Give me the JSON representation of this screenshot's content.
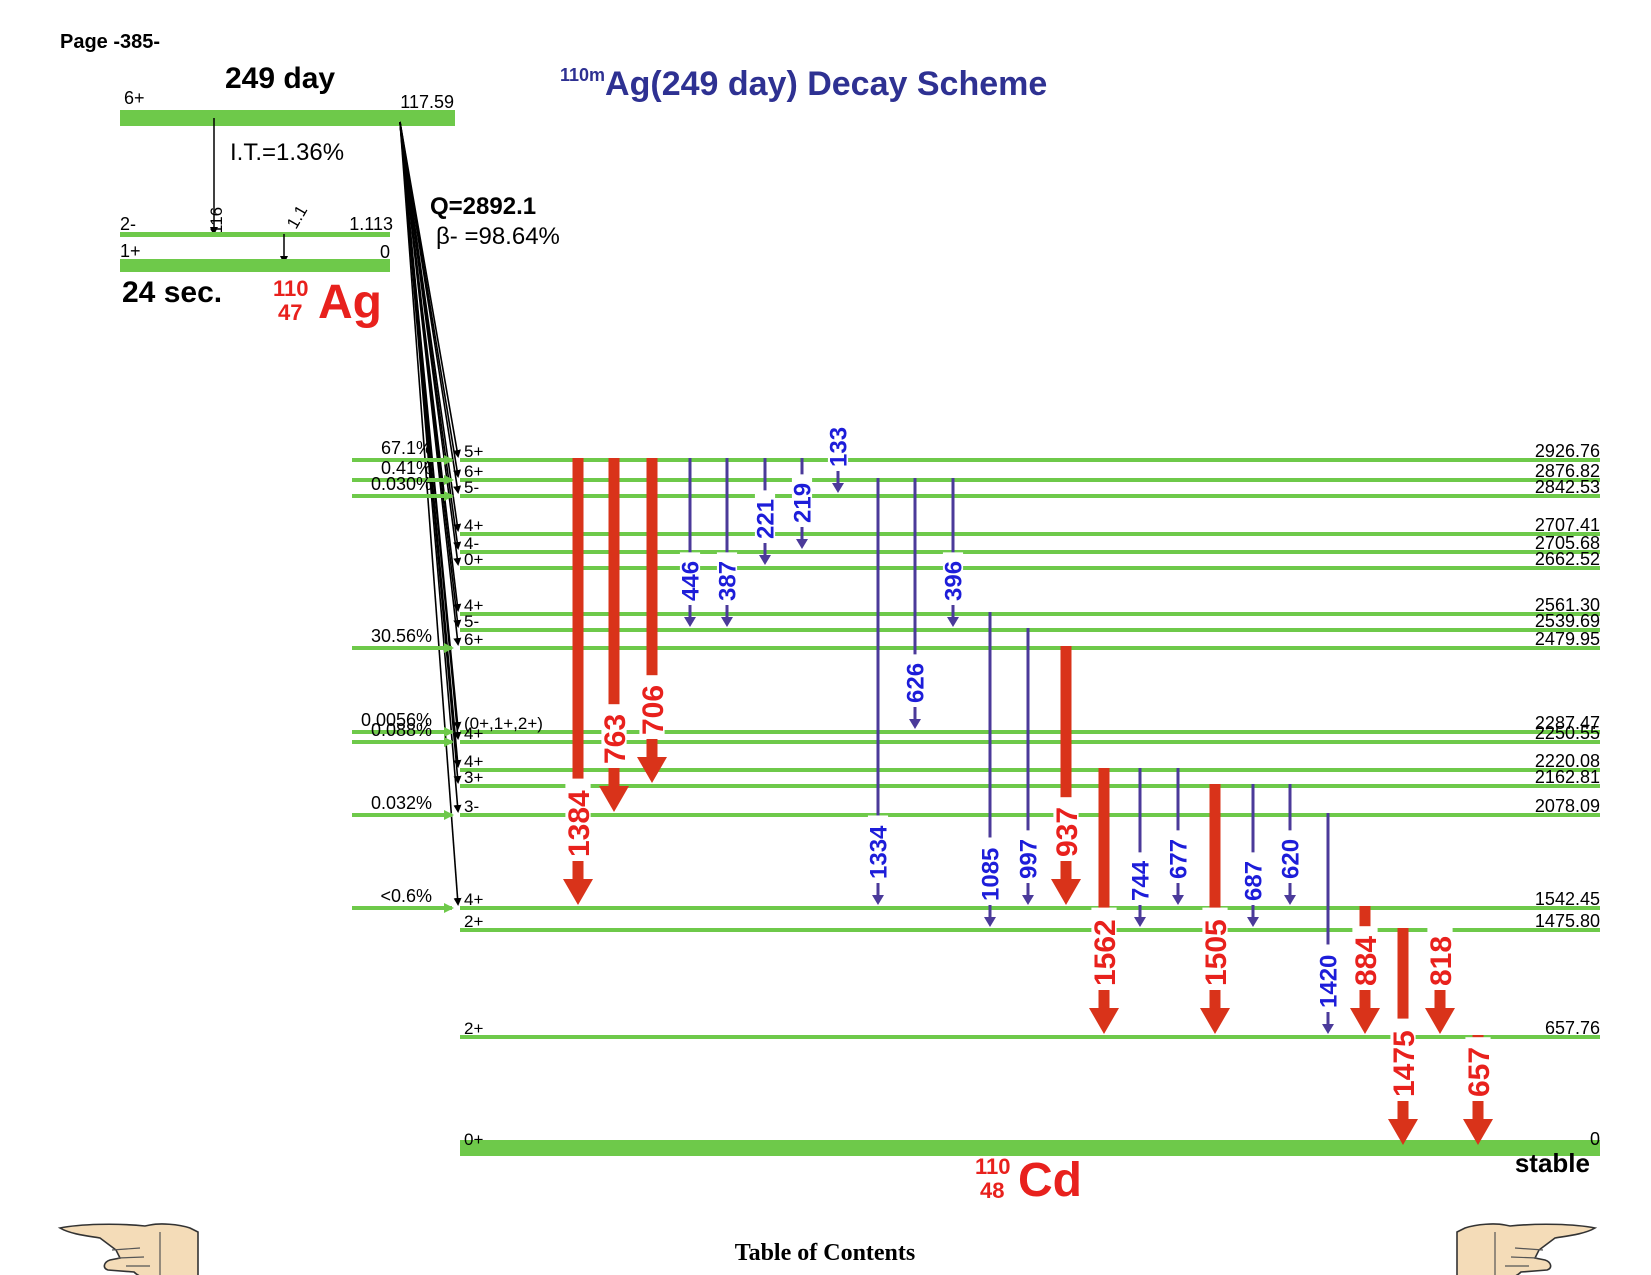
{
  "page_label": "Page -385-",
  "title": {
    "mass": "110m",
    "text": "Ag(249 day) Decay Scheme"
  },
  "parent": {
    "half_life": "249 day",
    "spin": "6+",
    "energy": "117.59",
    "it_branch": "I.T.=1.36%",
    "q_value": "Q=2892.1",
    "beta_branch": "β- =98.64%",
    "it_gamma": "116",
    "gamma_small": "1.1",
    "level_2minus": {
      "spin": "2-",
      "energy": "1.113"
    },
    "ground": {
      "spin": "1+",
      "energy": "0"
    },
    "ground_half_life": "24 sec.",
    "nuclide": {
      "A": "110",
      "Z": "47",
      "symbol": "Ag"
    }
  },
  "daughter": {
    "nuclide": {
      "A": "110",
      "Z": "48",
      "symbol": "Cd"
    },
    "stable_label": "stable"
  },
  "levels": [
    {
      "spin": "5+",
      "energy": "2926.76",
      "feed": "67.1%"
    },
    {
      "spin": "6+",
      "energy": "2876.82",
      "feed": "0.41%"
    },
    {
      "spin": "5-",
      "energy": "2842.53",
      "feed": "0.030%"
    },
    {
      "spin": "4+",
      "energy": "2707.41",
      "feed": ""
    },
    {
      "spin": "4-",
      "energy": "2705.68",
      "feed": ""
    },
    {
      "spin": "0+",
      "energy": "2662.52",
      "feed": ""
    },
    {
      "spin": "4+",
      "energy": "2561.30",
      "feed": ""
    },
    {
      "spin": "5-",
      "energy": "2539.69",
      "feed": ""
    },
    {
      "spin": "6+",
      "energy": "2479.95",
      "feed": "30.56%"
    },
    {
      "spin": "(0+,1+,2+)",
      "energy": "2287.47",
      "feed": "0.0056%"
    },
    {
      "spin": "4+",
      "energy": "2250.55",
      "feed": "0.088%"
    },
    {
      "spin": "4+",
      "energy": "2220.08",
      "feed": ""
    },
    {
      "spin": "3+",
      "energy": "2162.81",
      "feed": ""
    },
    {
      "spin": "3-",
      "energy": "2078.09",
      "feed": "0.032%"
    },
    {
      "spin": "4+",
      "energy": "1542.45",
      "feed": "<0.6%"
    },
    {
      "spin": "2+",
      "energy": "1475.80",
      "feed": ""
    },
    {
      "spin": "2+",
      "energy": "657.76",
      "feed": ""
    },
    {
      "spin": "0+",
      "energy": "0",
      "feed": ""
    }
  ],
  "gammas": [
    {
      "label": "1384",
      "from": 0,
      "to": 14,
      "strong": true
    },
    {
      "label": "763",
      "from": 0,
      "to": 13,
      "strong": true
    },
    {
      "label": "706",
      "from": 0,
      "to": 12,
      "strong": true
    },
    {
      "label": "446",
      "from": 0,
      "to": 7,
      "strong": false
    },
    {
      "label": "387",
      "from": 0,
      "to": 7,
      "strong": false
    },
    {
      "label": "221",
      "from": 0,
      "to": 5,
      "strong": false
    },
    {
      "label": "219",
      "from": 0,
      "to": 4,
      "strong": false
    },
    {
      "label": "133",
      "from": 0,
      "to": 2,
      "strong": false
    },
    {
      "label": "1334",
      "from": 1,
      "to": 14,
      "strong": false
    },
    {
      "label": "626",
      "from": 1,
      "to": 9,
      "strong": false
    },
    {
      "label": "396",
      "from": 1,
      "to": 7,
      "strong": false
    },
    {
      "label": "1085",
      "from": 6,
      "to": 15,
      "strong": false
    },
    {
      "label": "997",
      "from": 7,
      "to": 14,
      "strong": false
    },
    {
      "label": "937",
      "from": 8,
      "to": 14,
      "strong": true
    },
    {
      "label": "1562",
      "from": 11,
      "to": 16,
      "strong": true
    },
    {
      "label": "744",
      "from": 11,
      "to": 15,
      "strong": false
    },
    {
      "label": "677",
      "from": 11,
      "to": 14,
      "strong": false
    },
    {
      "label": "1505",
      "from": 12,
      "to": 16,
      "strong": true
    },
    {
      "label": "687",
      "from": 12,
      "to": 15,
      "strong": false
    },
    {
      "label": "620",
      "from": 12,
      "to": 14,
      "strong": false
    },
    {
      "label": "1420",
      "from": 13,
      "to": 16,
      "strong": false
    },
    {
      "label": "884",
      "from": 14,
      "to": 16,
      "strong": true
    },
    {
      "label": "1475",
      "from": 15,
      "to": 17,
      "strong": true
    },
    {
      "label": "818",
      "from": 15,
      "to": 16,
      "strong": true
    },
    {
      "label": "657",
      "from": 16,
      "to": 17,
      "strong": true
    }
  ],
  "footer": {
    "toc": "Table of Contents"
  },
  "colors": {
    "level": "#6ec94a",
    "strong_gamma": "#d9331a",
    "weak_gamma": "#4b3a9a",
    "strong_label": "#e8211d",
    "weak_label": "#1d1dd9",
    "title": "#2e3192",
    "nuclide": "#e8211d"
  },
  "icons": {
    "prev": "pointing-hand-left-icon",
    "next": "pointing-hand-right-icon"
  }
}
